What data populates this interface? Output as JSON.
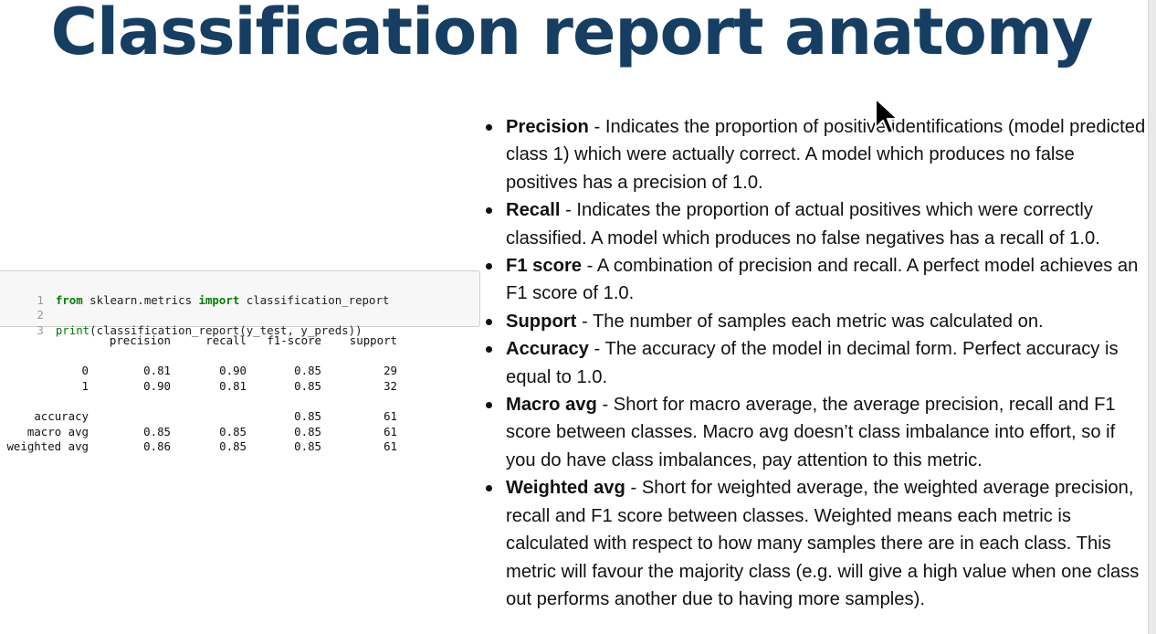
{
  "title": "Classification report anatomy",
  "code_cell": {
    "lines": [
      {
        "num": "1",
        "kw1": "from",
        "mod": " sklearn.metrics ",
        "kw2": "import",
        "name": " classification_report"
      },
      {
        "num": "2"
      },
      {
        "num": "3",
        "fn": "print",
        "args": "(classification_report(y_test, y_preds))"
      }
    ]
  },
  "report": {
    "headers": [
      "precision",
      "recall",
      "f1-score",
      "support"
    ],
    "rows": [
      {
        "label": "0",
        "precision": "0.81",
        "recall": "0.90",
        "f1": "0.85",
        "support": "29"
      },
      {
        "label": "1",
        "precision": "0.90",
        "recall": "0.81",
        "f1": "0.85",
        "support": "32"
      },
      {
        "label": "accuracy",
        "precision": "",
        "recall": "",
        "f1": "0.85",
        "support": "61"
      },
      {
        "label": "macro avg",
        "precision": "0.85",
        "recall": "0.85",
        "f1": "0.85",
        "support": "61"
      },
      {
        "label": "weighted avg",
        "precision": "0.86",
        "recall": "0.85",
        "f1": "0.85",
        "support": "61"
      }
    ]
  },
  "definitions": [
    {
      "term": "Precision",
      "text": " - Indicates the proportion of positive identifications (model predicted class 1) which were actually correct. A model which produces no false positives has a precision of 1.0."
    },
    {
      "term": "Recall",
      "text": " - Indicates the proportion of actual positives which were correctly classified. A model which produces no false negatives has a recall of 1.0."
    },
    {
      "term": "F1 score",
      "text": " - A combination of precision and recall. A perfect model achieves an F1 score of 1.0."
    },
    {
      "term": "Support",
      "text": " - The number of samples each metric was calculated on."
    },
    {
      "term": "Accuracy",
      "text": " - The accuracy of the model in decimal form. Perfect accuracy is equal to 1.0."
    },
    {
      "term": "Macro avg",
      "text": " - Short for macro average, the average precision, recall and F1 score between classes. Macro avg doesn’t class imbalance into effort, so if you do have class imbalances, pay attention to this metric."
    },
    {
      "term": "Weighted avg",
      "text": " - Short for weighted average, the weighted average precision, recall and F1 score between classes. Weighted means each metric is calculated with respect to how many samples there are in each class. This metric will favour the majority class (e.g. will give a high value when one class out performs another due to having more samples)."
    }
  ]
}
